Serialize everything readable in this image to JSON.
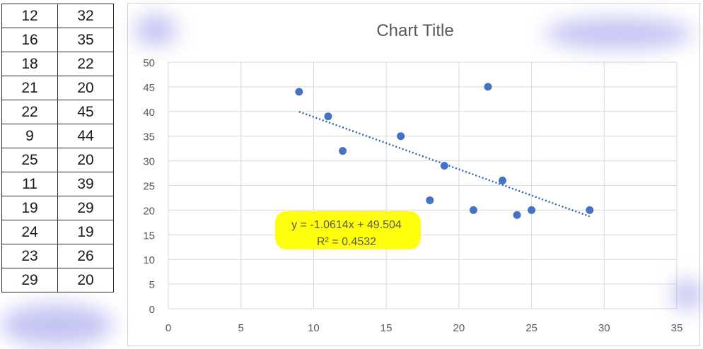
{
  "table": {
    "rows": [
      [
        "12",
        "32"
      ],
      [
        "16",
        "35"
      ],
      [
        "18",
        "22"
      ],
      [
        "21",
        "20"
      ],
      [
        "22",
        "45"
      ],
      [
        "9",
        "44"
      ],
      [
        "25",
        "20"
      ],
      [
        "11",
        "39"
      ],
      [
        "19",
        "29"
      ],
      [
        "24",
        "19"
      ],
      [
        "23",
        "26"
      ],
      [
        "29",
        "20"
      ]
    ]
  },
  "chart_data": {
    "type": "scatter",
    "title": "Chart Title",
    "xlabel": "",
    "ylabel": "",
    "xlim": [
      0,
      35
    ],
    "ylim": [
      0,
      50
    ],
    "xticks": [
      0,
      5,
      10,
      15,
      20,
      25,
      30,
      35
    ],
    "yticks": [
      0,
      5,
      10,
      15,
      20,
      25,
      30,
      35,
      40,
      45,
      50
    ],
    "grid": true,
    "legend": "none",
    "points": [
      {
        "x": 12,
        "y": 32
      },
      {
        "x": 16,
        "y": 35
      },
      {
        "x": 18,
        "y": 22
      },
      {
        "x": 21,
        "y": 20
      },
      {
        "x": 22,
        "y": 45
      },
      {
        "x": 9,
        "y": 44
      },
      {
        "x": 25,
        "y": 20
      },
      {
        "x": 11,
        "y": 39
      },
      {
        "x": 19,
        "y": 29
      },
      {
        "x": 24,
        "y": 19
      },
      {
        "x": 23,
        "y": 26
      },
      {
        "x": 29,
        "y": 20
      }
    ],
    "trendline": {
      "type": "linear",
      "slope": -1.0614,
      "intercept": 49.504,
      "x_range": [
        9,
        29
      ],
      "equation_label": "y = -1.0614x + 49.504",
      "r2_label": "R² = 0.4532"
    },
    "colors": {
      "marker": "#4472c4",
      "trendline": "#2e64b0",
      "grid": "#d9d9d9",
      "highlight": "#ffff00",
      "text": "#595959",
      "title": "#595959"
    }
  }
}
